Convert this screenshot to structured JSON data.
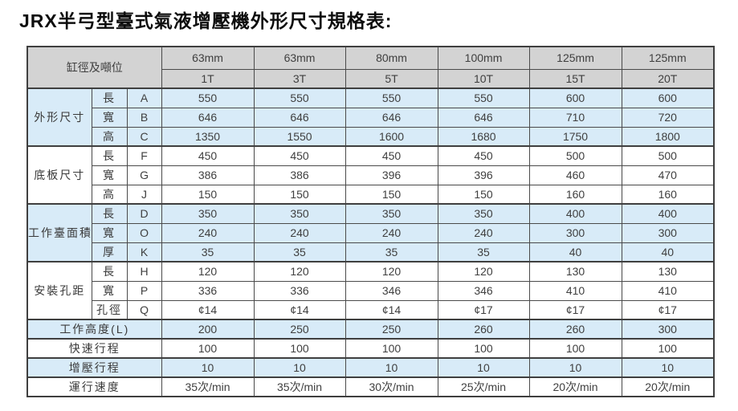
{
  "title": "JRX半弓型臺式氣液增壓機外形尺寸規格表:",
  "colors": {
    "header_bg": "#d3d3d3",
    "band_blue": "#d8ebf8",
    "band_white": "#ffffff",
    "border": "#4a4a4a",
    "text": "#3f3f3f"
  },
  "table": {
    "corner_label": "缸徑及噸位",
    "columns": [
      {
        "bore": "63mm",
        "tonnage": "1T"
      },
      {
        "bore": "63mm",
        "tonnage": "3T"
      },
      {
        "bore": "80mm",
        "tonnage": "5T"
      },
      {
        "bore": "100mm",
        "tonnage": "10T"
      },
      {
        "bore": "125mm",
        "tonnage": "15T"
      },
      {
        "bore": "125mm",
        "tonnage": "20T"
      }
    ],
    "groups": [
      {
        "label": "外形尺寸",
        "band": "blue",
        "rows": [
          {
            "dim": "長",
            "code": "A",
            "values": [
              "550",
              "550",
              "550",
              "550",
              "600",
              "600"
            ]
          },
          {
            "dim": "寬",
            "code": "B",
            "values": [
              "646",
              "646",
              "646",
              "646",
              "710",
              "720"
            ]
          },
          {
            "dim": "高",
            "code": "C",
            "values": [
              "1350",
              "1550",
              "1600",
              "1680",
              "1750",
              "1800"
            ]
          }
        ]
      },
      {
        "label": "底板尺寸",
        "band": "white",
        "rows": [
          {
            "dim": "長",
            "code": "F",
            "values": [
              "450",
              "450",
              "450",
              "450",
              "500",
              "500"
            ]
          },
          {
            "dim": "寬",
            "code": "G",
            "values": [
              "386",
              "386",
              "396",
              "396",
              "460",
              "470"
            ]
          },
          {
            "dim": "高",
            "code": "J",
            "values": [
              "150",
              "150",
              "150",
              "150",
              "160",
              "160"
            ]
          }
        ]
      },
      {
        "label": "工作臺面積",
        "band": "blue",
        "rows": [
          {
            "dim": "長",
            "code": "D",
            "values": [
              "350",
              "350",
              "350",
              "350",
              "400",
              "400"
            ]
          },
          {
            "dim": "寬",
            "code": "O",
            "values": [
              "240",
              "240",
              "240",
              "240",
              "300",
              "300"
            ]
          },
          {
            "dim": "厚",
            "code": "K",
            "values": [
              "35",
              "35",
              "35",
              "35",
              "40",
              "40"
            ]
          }
        ]
      },
      {
        "label": "安裝孔距",
        "band": "white",
        "rows": [
          {
            "dim": "長",
            "code": "H",
            "values": [
              "120",
              "120",
              "120",
              "120",
              "130",
              "130"
            ]
          },
          {
            "dim": "寬",
            "code": "P",
            "values": [
              "336",
              "336",
              "346",
              "346",
              "410",
              "410"
            ]
          },
          {
            "dim": "孔徑",
            "code": "Q",
            "values": [
              "¢14",
              "¢14",
              "¢14",
              "¢17",
              "¢17",
              "¢17"
            ]
          }
        ]
      }
    ],
    "footer_rows": [
      {
        "label": "工作高度(L)",
        "band": "blue",
        "values": [
          "200",
          "250",
          "250",
          "260",
          "260",
          "300"
        ]
      },
      {
        "label": "快速行程",
        "band": "white",
        "values": [
          "100",
          "100",
          "100",
          "100",
          "100",
          "100"
        ]
      },
      {
        "label": "增壓行程",
        "band": "blue",
        "values": [
          "10",
          "10",
          "10",
          "10",
          "10",
          "10"
        ]
      },
      {
        "label": "運行速度",
        "band": "white",
        "values": [
          "35次/min",
          "35次/min",
          "30次/min",
          "25次/min",
          "20次/min",
          "20次/min"
        ]
      }
    ]
  }
}
